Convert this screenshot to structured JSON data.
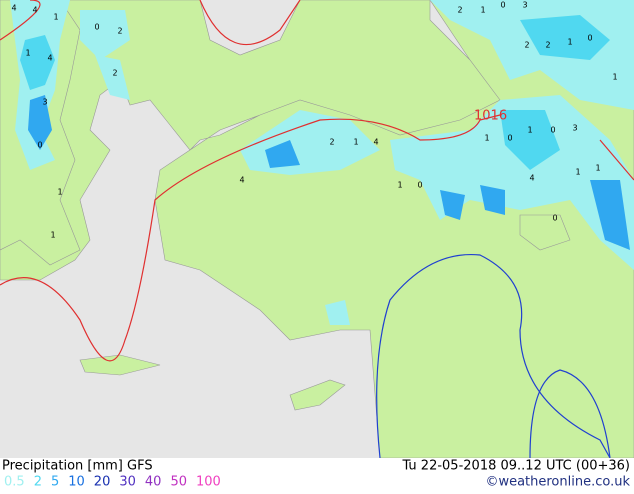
{
  "map": {
    "isobar_label": "1016",
    "point_labels": [
      "4",
      "4",
      "1",
      "0",
      "2",
      "1",
      "4",
      "2",
      "3",
      "0",
      "1",
      "1",
      "2",
      "1",
      "0",
      "3",
      "2",
      "1",
      "0",
      "2",
      "1",
      "2",
      "1",
      "4",
      "4",
      "1",
      "0",
      "1",
      "0",
      "1",
      "0",
      "3",
      "1",
      "1",
      "4",
      "0"
    ],
    "land_color": "#c9f0a0",
    "sea_color": "#e6e6e6",
    "isobar_colors": [
      "#e03030",
      "#2040d0"
    ]
  },
  "footer": {
    "title": "Precipitation [mm] GFS",
    "datetime": "Tu 22-05-2018 09..12 UTC (00+36)",
    "credit": "©weatheronline.co.uk",
    "legend": [
      {
        "value": 0.5,
        "color": "#a0f0f0"
      },
      {
        "value": 2,
        "color": "#50d8f0"
      },
      {
        "value": 5,
        "color": "#30a8f0"
      },
      {
        "value": 10,
        "color": "#1870e0"
      },
      {
        "value": 20,
        "color": "#1830b0"
      },
      {
        "value": 30,
        "color": "#5030c0"
      },
      {
        "value": 40,
        "color": "#9030c0"
      },
      {
        "value": 50,
        "color": "#c030c0"
      },
      {
        "value": 100,
        "color": "#f040c0"
      }
    ]
  }
}
